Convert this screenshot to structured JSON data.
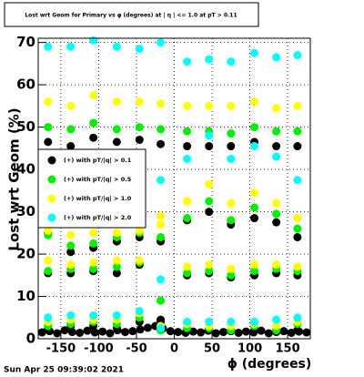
{
  "chart_data": {
    "type": "scatter",
    "title": "Lost wrt Geom for Primary vs φ (degrees) at | η | <= 1.0 at pT > 0.11",
    "x_label": "ϕ (degrees)",
    "y_label": "Lost wrt Geom (%)",
    "footer": "Sun Apr 25 09:39:02 2021",
    "xlim": [
      -180,
      180
    ],
    "ylim": [
      0,
      71
    ],
    "xticks": [
      -150,
      -100,
      -50,
      0,
      50,
      100,
      150
    ],
    "yticks": [
      0,
      10,
      20,
      30,
      40,
      50,
      60,
      70
    ],
    "grid": true,
    "legend": "left",
    "series": [
      {
        "name": "(+) with pT/|q| > 0.1",
        "color": "#000000",
        "x": [
          -167,
          -137,
          -107,
          -76,
          -46,
          -18,
          17,
          46,
          75,
          106,
          135,
          163,
          -167,
          -137,
          -107,
          -76,
          -46,
          -18,
          17,
          46,
          75,
          106,
          135,
          163,
          -167,
          -137,
          -107,
          -76,
          -46,
          -18,
          17,
          46,
          75,
          106,
          135,
          163,
          -167,
          -137,
          -107,
          -76,
          -46,
          -18,
          17,
          46,
          75,
          106,
          135,
          163,
          -175,
          -165,
          -155,
          -145,
          -135,
          -125,
          -115,
          -105,
          -95,
          -85,
          -75,
          -65,
          -55,
          -45,
          -35,
          -25,
          -15,
          -5,
          5,
          15,
          25,
          35,
          45,
          55,
          65,
          75,
          85,
          95,
          105,
          115,
          125,
          135,
          145,
          155,
          165,
          175
        ],
        "values": [
          46.5,
          45.5,
          47.5,
          46.5,
          47,
          46,
          45.5,
          45.5,
          45.5,
          46.5,
          45.5,
          45.5,
          25,
          20.5,
          21.5,
          23,
          24,
          23,
          28,
          30,
          27,
          28.5,
          27.5,
          24,
          15.5,
          15.5,
          16,
          15.5,
          17.5,
          4,
          15,
          15.5,
          14.5,
          15,
          15.5,
          15,
          2.5,
          3,
          3,
          2.5,
          4,
          4.5,
          2,
          2,
          2,
          2,
          2,
          2,
          1.5,
          1.8,
          1.3,
          2,
          1.6,
          1.4,
          1.9,
          1.5,
          1.7,
          1.3,
          2,
          1.6,
          1.8,
          2.2,
          2.6,
          3,
          2.4,
          1.8,
          1.6,
          1.4,
          1.7,
          1.5,
          1.9,
          1.3,
          1.6,
          1.8,
          1.4,
          1.7,
          1.5,
          1.9,
          1.3,
          1.6,
          1.8,
          1.4,
          1.7,
          1.5
        ]
      },
      {
        "name": "(+) with pT/|q| > 0.5",
        "color": "#00ee00",
        "x": [
          -167,
          -137,
          -107,
          -76,
          -46,
          -18,
          17,
          46,
          75,
          106,
          135,
          163,
          -167,
          -137,
          -107,
          -76,
          -46,
          -18,
          17,
          46,
          75,
          106,
          135,
          163,
          -167,
          -137,
          -107,
          -76,
          -46,
          -18,
          17,
          46,
          75,
          106,
          135,
          163,
          -167,
          -137,
          -107,
          -76,
          -46,
          -18,
          17,
          46,
          75,
          106,
          135,
          163
        ],
        "values": [
          50,
          49.5,
          51,
          49.5,
          50,
          49.5,
          49,
          49,
          48.5,
          50,
          49,
          49,
          24.5,
          22,
          22.5,
          24,
          25,
          24,
          28.5,
          32.5,
          28,
          31,
          29.5,
          26,
          16,
          16.5,
          16.5,
          17,
          18,
          9,
          15.5,
          16,
          15,
          16,
          16.5,
          16,
          3,
          3.5,
          4,
          3.5,
          5,
          2,
          2.5,
          2.5,
          2,
          3,
          2,
          3.5
        ]
      },
      {
        "name": "(+) with pT/|q| > 1.0",
        "color": "#ffff00",
        "x": [
          -167,
          -137,
          -107,
          -76,
          -46,
          -18,
          17,
          46,
          75,
          106,
          135,
          163,
          -167,
          -137,
          -107,
          -76,
          -46,
          -18,
          17,
          46,
          75,
          106,
          135,
          163,
          -167,
          -137,
          -107,
          -76,
          -46,
          -18,
          17,
          46,
          75,
          106,
          135,
          163,
          -167,
          -137,
          -107,
          -76,
          -46,
          -18,
          17,
          46,
          75,
          106,
          135,
          163
        ],
        "values": [
          56,
          55,
          57.5,
          56,
          56,
          55.5,
          55,
          55,
          55,
          56,
          54.5,
          55,
          25.5,
          24.5,
          25,
          25,
          25.5,
          29,
          32.5,
          36.5,
          32,
          34.5,
          32,
          28.5,
          18.5,
          17.5,
          18,
          18.5,
          18.5,
          27,
          17,
          17.5,
          16.5,
          17.5,
          17.5,
          17,
          4,
          4.5,
          4.5,
          4.5,
          6,
          3,
          3.5,
          3,
          3,
          3.5,
          3,
          4
        ]
      },
      {
        "name": "(+) with pT/|q| > 2.0",
        "color": "#00ffff",
        "x": [
          -167,
          -137,
          -107,
          -76,
          -46,
          -18,
          17,
          46,
          75,
          106,
          135,
          163,
          -18,
          17,
          46,
          75,
          106,
          135,
          163,
          -18,
          -167,
          -137,
          -107,
          -76,
          -46,
          -18,
          17,
          46,
          75,
          106,
          135,
          163
        ],
        "values": [
          69,
          69,
          70.5,
          69,
          68.5,
          70,
          65.5,
          66,
          65.5,
          67.5,
          66.5,
          67,
          37.5,
          42.5,
          48,
          42.5,
          45.5,
          43,
          37.5,
          14,
          5,
          5.5,
          5.5,
          5.5,
          6.5,
          2.5,
          4,
          4,
          4,
          4,
          4.5,
          5
        ]
      }
    ]
  }
}
